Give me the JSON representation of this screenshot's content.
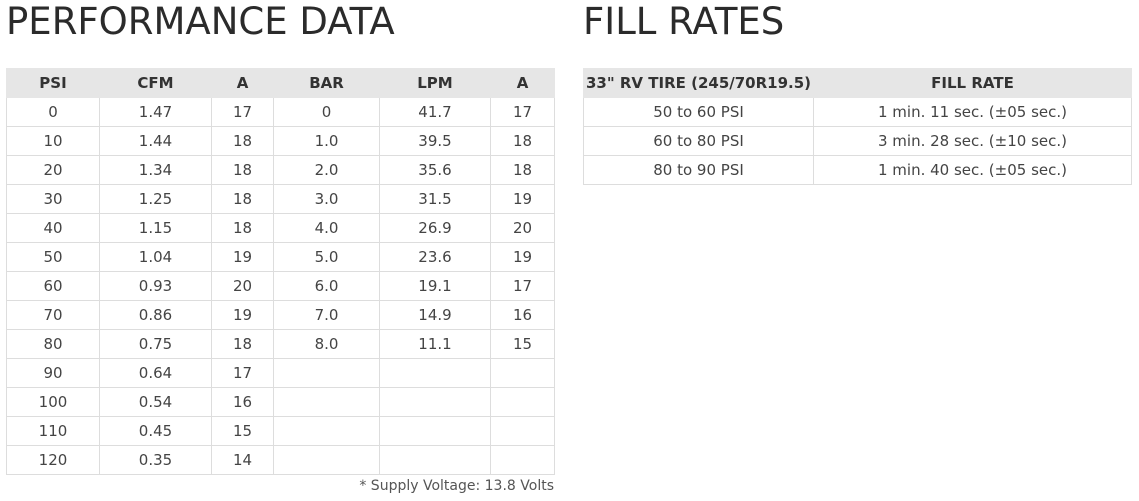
{
  "performance": {
    "title": "PERFORMANCE DATA",
    "headers": [
      "PSI",
      "CFM",
      "A",
      "BAR",
      "LPM",
      "A"
    ],
    "rows": [
      [
        "0",
        "1.47",
        "17",
        "0",
        "41.7",
        "17"
      ],
      [
        "10",
        "1.44",
        "18",
        "1.0",
        "39.5",
        "18"
      ],
      [
        "20",
        "1.34",
        "18",
        "2.0",
        "35.6",
        "18"
      ],
      [
        "30",
        "1.25",
        "18",
        "3.0",
        "31.5",
        "19"
      ],
      [
        "40",
        "1.15",
        "18",
        "4.0",
        "26.9",
        "20"
      ],
      [
        "50",
        "1.04",
        "19",
        "5.0",
        "23.6",
        "19"
      ],
      [
        "60",
        "0.93",
        "20",
        "6.0",
        "19.1",
        "17"
      ],
      [
        "70",
        "0.86",
        "19",
        "7.0",
        "14.9",
        "16"
      ],
      [
        "80",
        "0.75",
        "18",
        "8.0",
        "11.1",
        "15"
      ],
      [
        "90",
        "0.64",
        "17",
        "",
        "",
        ""
      ],
      [
        "100",
        "0.54",
        "16",
        "",
        "",
        ""
      ],
      [
        "110",
        "0.45",
        "15",
        "",
        "",
        ""
      ],
      [
        "120",
        "0.35",
        "14",
        "",
        "",
        ""
      ]
    ],
    "note": "* Supply Voltage: 13.8 Volts"
  },
  "fill_rates": {
    "title": "FILL RATES",
    "headers": [
      "33\" RV TIRE (245/70R19.5)",
      "FILL RATE"
    ],
    "rows": [
      [
        "50 to 60 PSI",
        "1 min. 11 sec. (±05 sec.)"
      ],
      [
        "60 to 80 PSI",
        "3 min. 28 sec. (±10 sec.)"
      ],
      [
        "80 to 90 PSI",
        "1 min. 40 sec. (±05 sec.)"
      ]
    ]
  },
  "colors": {
    "header_bg": "#e6e6e6",
    "border": "#dddddd",
    "text": "#444444"
  }
}
